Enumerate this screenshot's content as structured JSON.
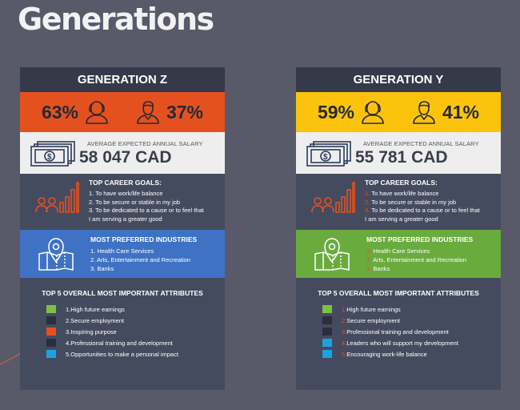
{
  "title": "Generations",
  "cards": [
    {
      "key": "z",
      "header": "GENERATION Z",
      "female_pct": "63%",
      "male_pct": "37%",
      "salary_label": "AVERAGE EXPECTED ANNUAL SALARY",
      "salary_value": "58 047 CAD",
      "goals_title": "TOP CAREER GOALS:",
      "goals": [
        {
          "num": "1.",
          "text": "To have work/life balance"
        },
        {
          "num": "2.",
          "text": "To be secure or stable in my job"
        },
        {
          "num": "3.",
          "text": "To be dedicated to a cause or to feel that"
        },
        {
          "num": "",
          "text": "I am serving a greater good"
        }
      ],
      "industries_title": "MOST PREFERRED INDUSTRIES",
      "industries": [
        {
          "num": "1.",
          "text": "Health Care Services"
        },
        {
          "num": "2.",
          "text": "Arts, Entertainment and Recreation"
        },
        {
          "num": "3.",
          "text": "Banks"
        }
      ],
      "attributes_title": "TOP 5 OVERALL MOST IMPORTANT ATTRIBUTES",
      "attributes": [
        {
          "num": "1.",
          "text": "High future earnings",
          "color": "#7dc142"
        },
        {
          "num": "2.",
          "text": "Secure employment",
          "color": "#2b2f3b"
        },
        {
          "num": "3.",
          "text": "Inspiring purpose",
          "color": "#e4511f"
        },
        {
          "num": "4.",
          "text": "Professional training and development",
          "color": "#2b2f3b"
        },
        {
          "num": "5.",
          "text": "Opportunities to make a personal impact",
          "color": "#1aa3e0"
        }
      ]
    },
    {
      "key": "y",
      "header": "GENERATION Y",
      "female_pct": "59%",
      "male_pct": "41%",
      "salary_label": "AVERAGE EXPECTED ANNUAL SALARY",
      "salary_value": "55 781 CAD",
      "goals_title": "TOP CAREER GOALS:",
      "goals": [
        {
          "num": "1.",
          "text": "To have work/life balance"
        },
        {
          "num": "2.",
          "text": "To be secure or stable in my job"
        },
        {
          "num": "3.",
          "text": "To be dedicated to a cause or to feel that"
        },
        {
          "num": "",
          "text": "I am serving a greater good"
        }
      ],
      "industries_title": "MOST PREFERRED INDUSTRIES",
      "industries": [
        {
          "num": "1.",
          "text": "Health Care Services"
        },
        {
          "num": "2.",
          "text": "Arts, Entertainment and Recreation"
        },
        {
          "num": "3.",
          "text": "Banks"
        }
      ],
      "attributes_title": "TOP 5 OVERALL MOST IMPORTANT ATTRIBUTES",
      "attributes": [
        {
          "num": "1.",
          "text": "High future earnings",
          "color": "#7dc142"
        },
        {
          "num": "2.",
          "text": "Secure employment",
          "color": "#2b2f3b"
        },
        {
          "num": "3.",
          "text": "Professional training and development",
          "color": "#2b2f3b"
        },
        {
          "num": "4.",
          "text": "Leaders who will support my development",
          "color": "#1aa3e0"
        },
        {
          "num": "5.",
          "text": "Encouraging work-life balance",
          "color": "#1aa3e0"
        }
      ]
    }
  ],
  "icons": {
    "female": "female-user-icon",
    "male": "male-user-icon",
    "money": "money-bills-icon",
    "goals": "career-growth-icon",
    "map": "map-pin-icon"
  }
}
